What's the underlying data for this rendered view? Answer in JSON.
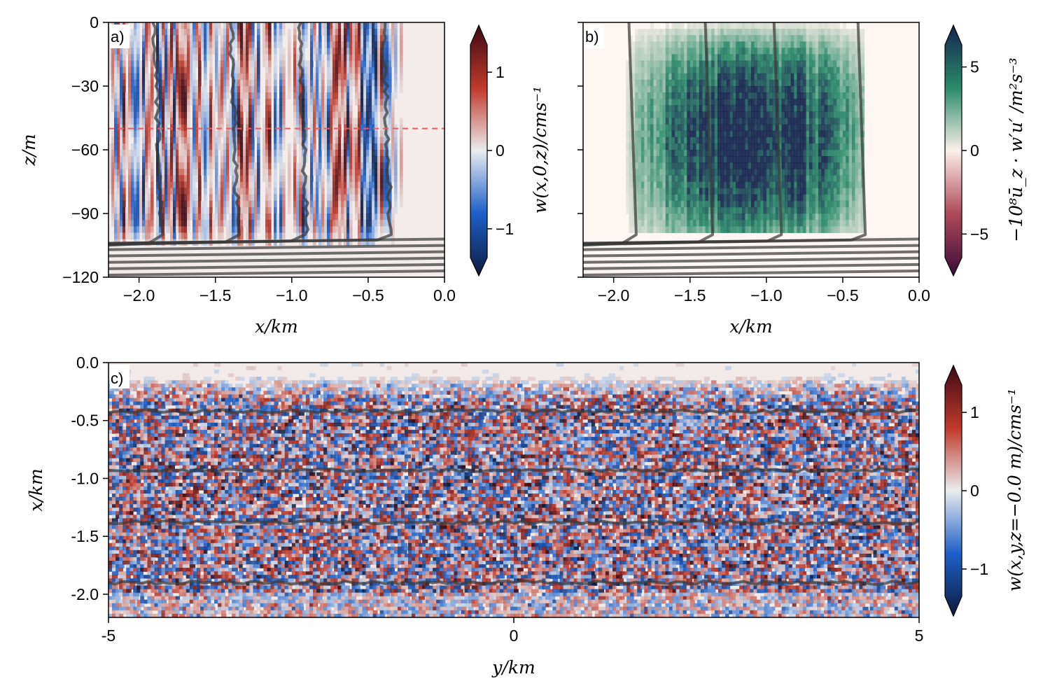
{
  "chart_data": [
    {
      "panel": "a)",
      "type": "heatmap",
      "xlabel": "x/km",
      "ylabel": "z/m",
      "xlim": [
        -2.2,
        0.0
      ],
      "ylim": [
        -120,
        0
      ],
      "xticks": [
        -2.0,
        -1.5,
        -1.0,
        -0.5,
        0.0
      ],
      "xtick_labels": [
        "−2.0",
        "−1.5",
        "−1.0",
        "−0.5",
        "0.0"
      ],
      "yticks": [
        0,
        -30,
        -60,
        -90,
        -120
      ],
      "ytick_labels": [
        "0",
        "−30",
        "−60",
        "−90",
        "−120"
      ],
      "reference_line": {
        "z": -50,
        "color": "#e85a5a",
        "style": "dashed"
      },
      "field_active_region_x": [
        -2.1,
        -0.4
      ],
      "contours_vertical_x": [
        -1.9,
        -1.4,
        -0.95,
        -0.4
      ],
      "contours_horizontal_z": [
        -104,
        -107,
        -110,
        -113,
        -116,
        -119
      ],
      "colorbar": {
        "label": "w(x,0,z)/cms⁻¹",
        "range": [
          -1.6,
          1.6
        ],
        "ticks": [
          1,
          0,
          -1
        ],
        "tick_labels": [
          "1",
          "0",
          "−1"
        ],
        "colormap": "balance",
        "colors": [
          "#0d1a3d",
          "#1e5fc8",
          "#e9ecee",
          "#c0392b",
          "#3d0a14"
        ]
      }
    },
    {
      "panel": "b)",
      "type": "heatmap",
      "xlabel": "x/km",
      "xlim": [
        -2.2,
        0.0
      ],
      "ylim": [
        -120,
        0
      ],
      "xticks": [
        -2.0,
        -1.5,
        -1.0,
        -0.5,
        0.0
      ],
      "xtick_labels": [
        "−2.0",
        "−1.5",
        "−1.0",
        "−0.5",
        "0.0"
      ],
      "field_active_region_x": [
        -2.05,
        -0.35
      ],
      "field_active_region_z": [
        -100,
        0
      ],
      "field_peak_x": -1.1,
      "contours_vertical_x": [
        -1.9,
        -1.4,
        -0.95,
        -0.4
      ],
      "contours_horizontal_z": [
        -104,
        -107,
        -110,
        -113,
        -116,
        -119
      ],
      "colorbar": {
        "label": "−10⁸ū_z · w′u′ /m²s⁻³",
        "range": [
          -7.5,
          7.5
        ],
        "ticks": [
          5,
          0,
          -5
        ],
        "tick_labels": [
          "5",
          "0",
          "−5"
        ],
        "colormap": "curl",
        "colors": [
          "#3a0a3a",
          "#b04a5a",
          "#fbefe9",
          "#2a8a6a",
          "#15244e"
        ]
      }
    },
    {
      "panel": "c)",
      "type": "heatmap",
      "xlabel": "y/km",
      "ylabel": "x/km",
      "xlim": [
        -5,
        5
      ],
      "ylim": [
        -2.2,
        0.0
      ],
      "xticks": [
        -5,
        0,
        5
      ],
      "xtick_labels": [
        "-5",
        "0",
        "5"
      ],
      "yticks": [
        0.0,
        -0.5,
        -1.0,
        -1.5,
        -2.0
      ],
      "ytick_labels": [
        "0.0",
        "-0.5",
        "-1.0",
        "-1.5",
        "-2.0"
      ],
      "contours_x": [
        -0.42,
        -0.93,
        -1.38,
        -1.9
      ],
      "colorbar": {
        "label": "w(x,y,z=−0.0 m)/cms⁻¹",
        "range": [
          -1.6,
          1.6
        ],
        "ticks": [
          1,
          0,
          -1
        ],
        "tick_labels": [
          "1",
          "0",
          "−1"
        ],
        "colormap": "balance",
        "colors": [
          "#0d1a3d",
          "#1e5fc8",
          "#e9ecee",
          "#c0392b",
          "#3d0a14"
        ]
      }
    }
  ]
}
